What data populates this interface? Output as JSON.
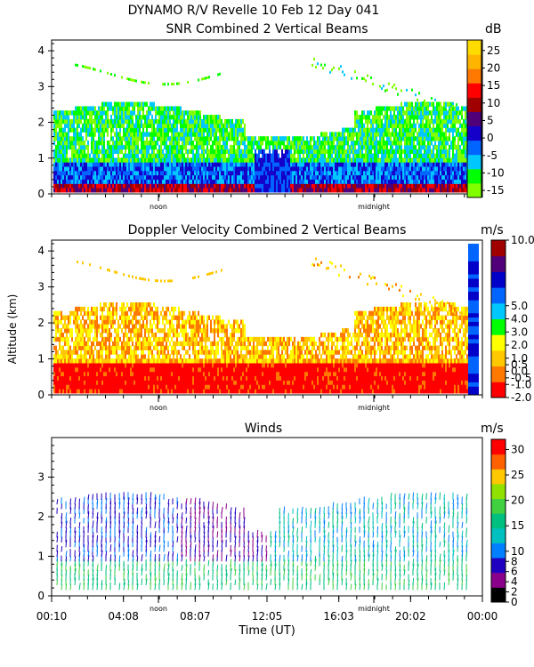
{
  "title": "DYNAMO R/V Revelle  10 Feb 12 Day 041",
  "colors": {
    "snr": [
      "#7fff00",
      "#00ff00",
      "#00c8ff",
      "#0064ff",
      "#1400c8",
      "#500078",
      "#a00000",
      "#ff0000",
      "#ff7800",
      "#ffb400",
      "#ffdc00"
    ],
    "doppler": [
      "#ff0000",
      "#ff7800",
      "#ffc800",
      "#ffff00",
      "#00ff00",
      "#00c8ff",
      "#0064ff",
      "#0000c8",
      "#500078",
      "#a00000"
    ],
    "winds": [
      "#000000",
      "#8b008b",
      "#2000c0",
      "#0080ff",
      "#00c0c0",
      "#00c080",
      "#40d040",
      "#90e000",
      "#ffc800",
      "#ff6000",
      "#ff0000"
    ]
  },
  "chart_data": [
    {
      "type": "heatmap",
      "title": "SNR Combined 2 Vertical Beams",
      "units": "dB",
      "ylim": [
        0,
        4.3
      ],
      "y_ticks": [
        "0",
        "1",
        "2",
        "3",
        "4"
      ],
      "x_markers": [
        "noon",
        "midnight"
      ],
      "colorbar_labels": [
        "25",
        "20",
        "15",
        "10",
        "5",
        "0",
        "-5",
        "-10",
        "-15"
      ],
      "colorbar_range": [
        -17,
        28
      ],
      "layers": [
        {
          "from_km": 0.0,
          "to_km": 0.3,
          "level": "-15 to 15 dB (near-surface strong)"
        },
        {
          "from_km": 0.3,
          "to_km": 2.4,
          "level": "-5 to 5 dB"
        },
        {
          "from_km": 2.4,
          "to_km": 4.3,
          "level": "-15 to -10 dB (sparse)"
        }
      ]
    },
    {
      "type": "heatmap",
      "title": "Doppler Velocity Combined 2 Vertical Beams",
      "units": "m/s",
      "ylabel": "Altitude (km)",
      "ylim": [
        0,
        4.3
      ],
      "y_ticks": [
        "0",
        "1",
        "2",
        "3",
        "4"
      ],
      "x_markers": [
        "noon",
        "midnight"
      ],
      "colorbar_labels": [
        "10.0",
        "5.0",
        "4.0",
        "3.0",
        "2.0",
        "1.0",
        "0.5",
        "0.0",
        "-0.5",
        "-1.0",
        "-2.0"
      ],
      "colorbar_range": [
        -2.0,
        10.0
      ]
    },
    {
      "type": "scatter",
      "subtype": "wind barbs",
      "title": "Winds",
      "units": "m/s",
      "xlabel": "Time (UT)",
      "ylim": [
        0,
        4
      ],
      "y_ticks": [
        "0",
        "1",
        "2",
        "3"
      ],
      "x_markers": [
        "noon",
        "midnight"
      ],
      "x_ticks": [
        "00:10",
        "04:08",
        "08:07",
        "12:05",
        "16:03",
        "20:02",
        "00:00"
      ],
      "colorbar_labels": [
        "30",
        "25",
        "20",
        "15",
        "10",
        "8",
        "6",
        "4",
        "2",
        "0"
      ],
      "colorbar_range": [
        0,
        32
      ]
    }
  ]
}
